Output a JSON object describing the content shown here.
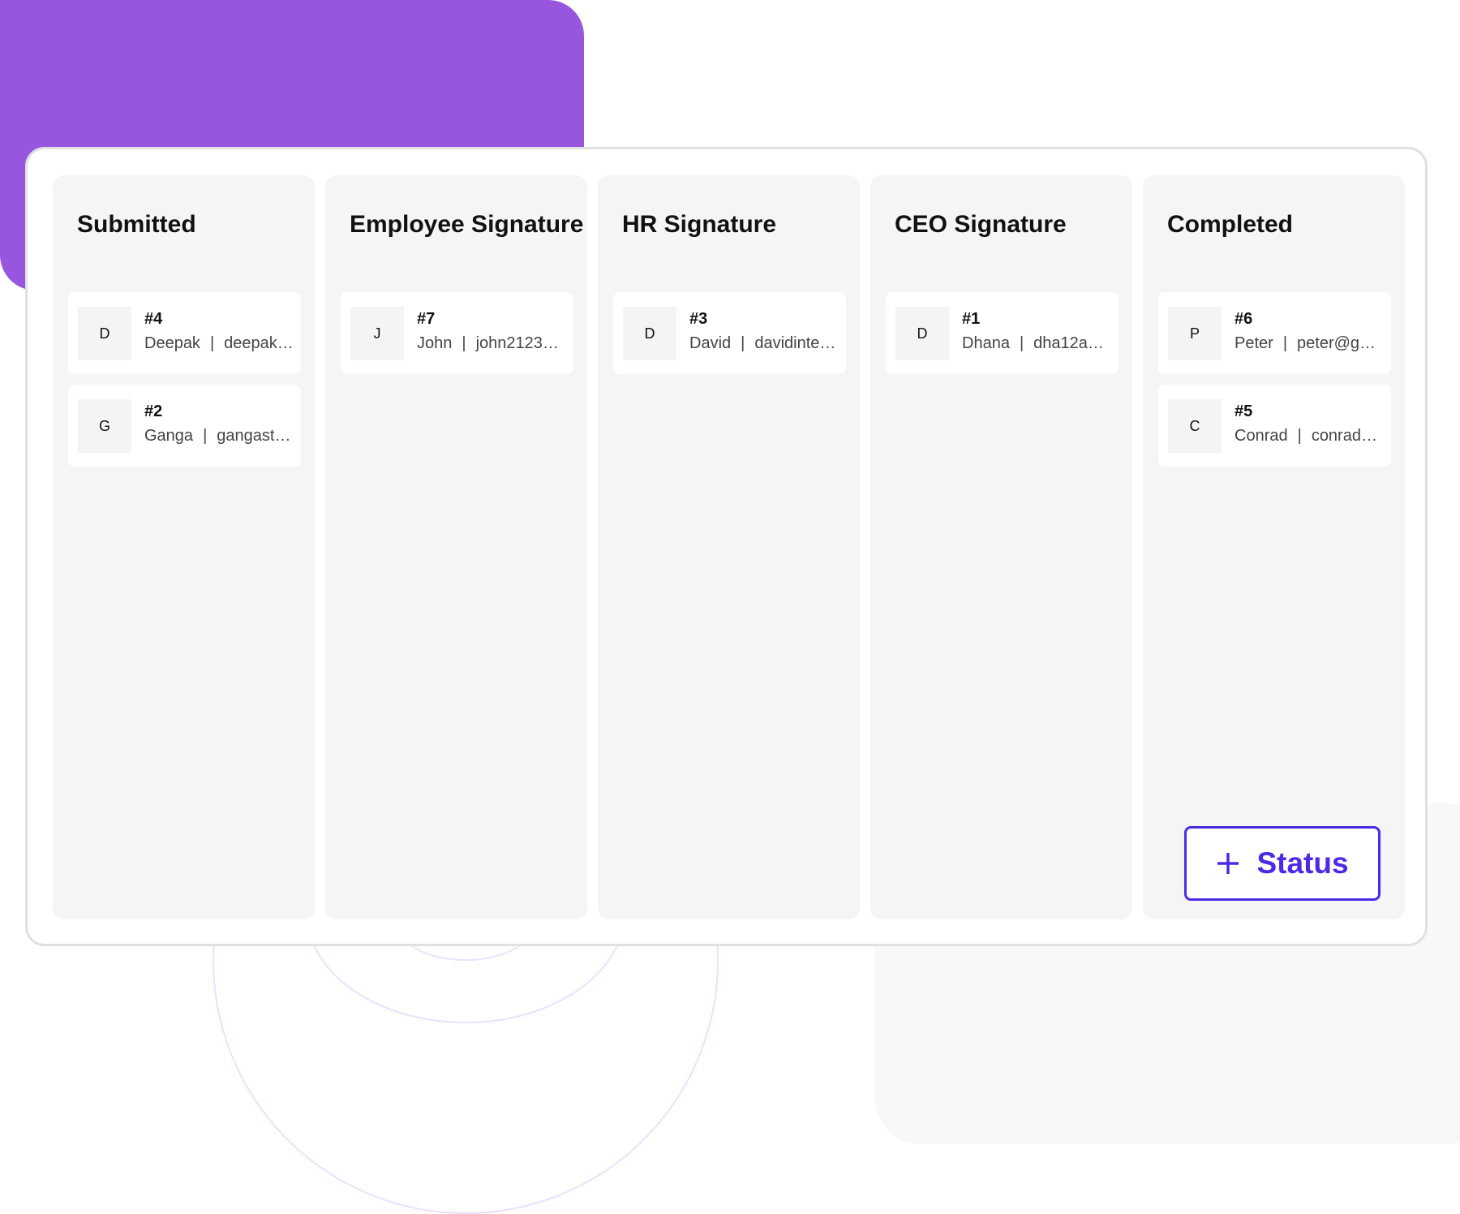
{
  "colors": {
    "accent": "#4b2ae8",
    "decor_purple": "#9856de"
  },
  "columns": [
    {
      "title": "Submitted",
      "cards": [
        {
          "avatar": "D",
          "id": "#4",
          "name": "Deepak",
          "email": "deepak…"
        },
        {
          "avatar": "G",
          "id": "#2",
          "name": "Ganga",
          "email": "gangast…"
        }
      ]
    },
    {
      "title": "Employee Signature",
      "cards": [
        {
          "avatar": "J",
          "id": "#7",
          "name": "John",
          "email": "john2123…"
        }
      ]
    },
    {
      "title": "HR Signature",
      "cards": [
        {
          "avatar": "D",
          "id": "#3",
          "name": "David",
          "email": "davidinte…"
        }
      ]
    },
    {
      "title": "CEO Signature",
      "cards": [
        {
          "avatar": "D",
          "id": "#1",
          "name": "Dhana",
          "email": "dha12a…"
        }
      ]
    },
    {
      "title": "Completed",
      "cards": [
        {
          "avatar": "P",
          "id": "#6",
          "name": "Peter",
          "email": "peter@g…"
        },
        {
          "avatar": "C",
          "id": "#5",
          "name": "Conrad",
          "email": "conrad…"
        }
      ]
    }
  ],
  "add_status": {
    "icon": "plus-icon",
    "label": "Status"
  }
}
